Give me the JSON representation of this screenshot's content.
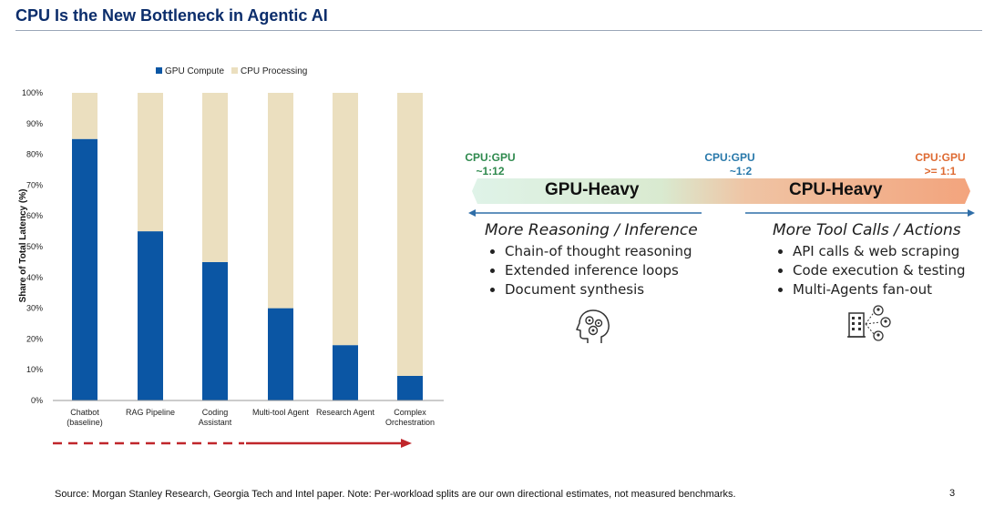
{
  "title": "CPU Is the New Bottleneck in Agentic AI",
  "colors": {
    "gpu": "#0b56a4",
    "cpu": "#ebdfbf",
    "title": "#0b2d6b",
    "ratio_green": "#2f8a4e",
    "ratio_blue": "#2878aa",
    "ratio_orange": "#de6a32",
    "arrow_red": "#c0262b",
    "axis_blue": "#2f6ea8"
  },
  "chart_data": {
    "type": "bar",
    "stacked": true,
    "categories": [
      "Chatbot\n(baseline)",
      "RAG Pipeline",
      "Coding\nAssistant",
      "Multi-tool Agent",
      "Research Agent",
      "Complex\nOrchestration"
    ],
    "series": [
      {
        "name": "GPU Compute",
        "values": [
          85,
          55,
          45,
          30,
          18,
          8
        ]
      },
      {
        "name": "CPU Processing",
        "values": [
          15,
          45,
          55,
          70,
          82,
          92
        ]
      }
    ],
    "ylabel": "Share of Total Latency (%)",
    "ylim": [
      0,
      100
    ],
    "yticks": [
      "0%",
      "10%",
      "20%",
      "30%",
      "40%",
      "50%",
      "60%",
      "70%",
      "80%",
      "90%",
      "100%"
    ],
    "legend": "top-center"
  },
  "spectrum": {
    "left_ratio": {
      "label": "CPU:GPU",
      "value": "~1:12"
    },
    "mid_ratio": {
      "label": "CPU:GPU",
      "value": "~1:2"
    },
    "right_ratio": {
      "label": "CPU:GPU",
      "value": ">= 1:1"
    },
    "gpu_heavy": "GPU-Heavy",
    "cpu_heavy": "CPU-Heavy",
    "left_heading": "More Reasoning / Inference",
    "left_items": [
      "Chain-of thought reasoning",
      "Extended inference loops",
      "Document synthesis"
    ],
    "right_heading": "More Tool Calls / Actions",
    "right_items": [
      "API calls & web scraping",
      "Code execution & testing",
      "Multi-Agents fan-out"
    ],
    "left_icon": "brain-gears-icon",
    "right_icon": "building-network-icon"
  },
  "source": "Source: Morgan Stanley Research, Georgia Tech and Intel paper. Note: Per-workload splits are our own directional estimates, not measured benchmarks.",
  "page_number": "3"
}
